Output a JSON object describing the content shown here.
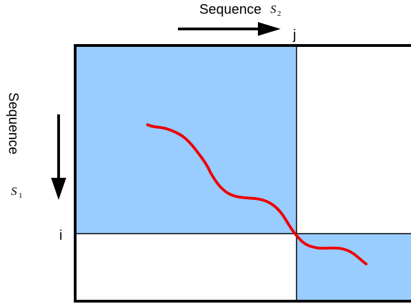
{
  "top_axis": {
    "word": "Sequence",
    "symbol": "S",
    "subscript": "2",
    "index": "j"
  },
  "left_axis": {
    "word": "Sequence",
    "symbol": "S",
    "subscript": "1",
    "index": "i"
  },
  "colors": {
    "region_fill": "#99ccff",
    "path": "#ee0000",
    "stroke": "#000000"
  }
}
